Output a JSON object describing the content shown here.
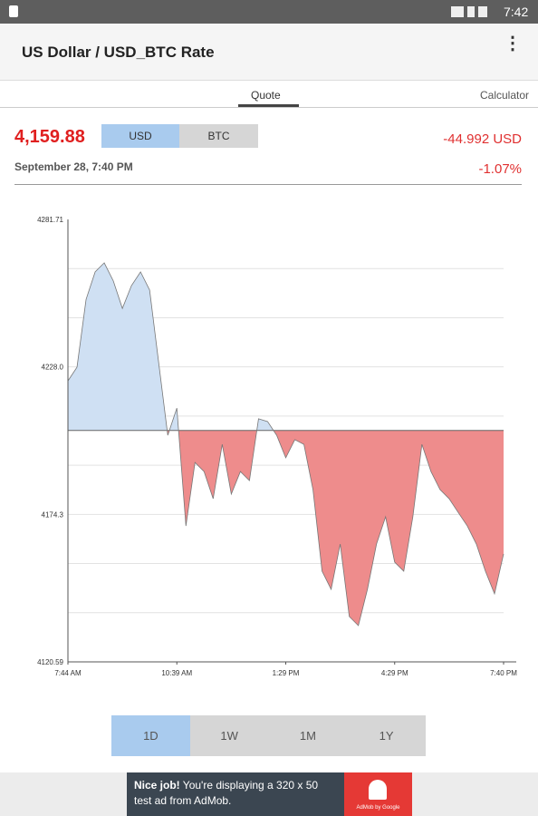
{
  "status_bar": {
    "time": "7:42"
  },
  "app_bar": {
    "title": "US Dollar / USD_BTC Rate"
  },
  "tabs": [
    "Quote",
    "Calculator"
  ],
  "quote": {
    "price": "4,159.88",
    "currencies": [
      "USD",
      "BTC"
    ],
    "date": "September 28, 7:40 PM",
    "change": "-44.992 USD",
    "change_percent": "-1.07%"
  },
  "chart_data": {
    "type": "area",
    "values": [
      4222.9,
      4227.9,
      4252.6,
      4262.6,
      4265.9,
      4259.3,
      4249.3,
      4257.6,
      4262.6,
      4256,
      4229.5,
      4203.1,
      4213,
      4170.1,
      4193.2,
      4189.9,
      4180,
      4199.8,
      4181.7,
      4189.9,
      4186.6,
      4209.1,
      4208.1,
      4203.1,
      4194.9,
      4201.5,
      4199.8,
      4183.3,
      4153.6,
      4147,
      4163.5,
      4137.1,
      4133.8,
      4147,
      4163.5,
      4173.4,
      4156.9,
      4153.6,
      4173.4,
      4199.8,
      4189.9,
      4183.3,
      4180,
      4175,
      4170.1,
      4163.5,
      4153.6,
      4145.4,
      4159.9
    ],
    "baseline": 4204.87,
    "xlim": [
      0,
      48
    ],
    "xticks": [
      {
        "value": 0,
        "label": "7:44 AM"
      },
      {
        "value": 12,
        "label": "10:39 AM"
      },
      {
        "value": 24,
        "label": "1:29 PM"
      },
      {
        "value": 36,
        "label": "4:29 PM"
      },
      {
        "value": 48,
        "label": "7:40 PM"
      }
    ],
    "ylim": [
      4120.59,
      4281.71
    ],
    "yticks": [
      {
        "value": 4281.71,
        "label": "4281.71"
      },
      {
        "value": 4263.81,
        "label": null
      },
      {
        "value": 4245.9,
        "label": null
      },
      {
        "value": 4228,
        "label": "4228.0"
      },
      {
        "value": 4210.1,
        "label": null
      },
      {
        "value": 4192.2,
        "label": null
      },
      {
        "value": 4174.3,
        "label": "4174.3"
      },
      {
        "value": 4156.4,
        "label": null
      },
      {
        "value": 4138.5,
        "label": null
      },
      {
        "value": 4120.59,
        "label": "4120.59"
      }
    ],
    "grid": true,
    "up_color": "#cfe0f3",
    "down_color": "#ee8c8c",
    "line_color": "#777777"
  },
  "ranges": [
    "1D",
    "1W",
    "1M",
    "1Y"
  ],
  "ad": {
    "bold": "Nice job!",
    "text": " You're displaying a 320 x 50 test ad from AdMob.",
    "brand": "AdMob by Google"
  }
}
